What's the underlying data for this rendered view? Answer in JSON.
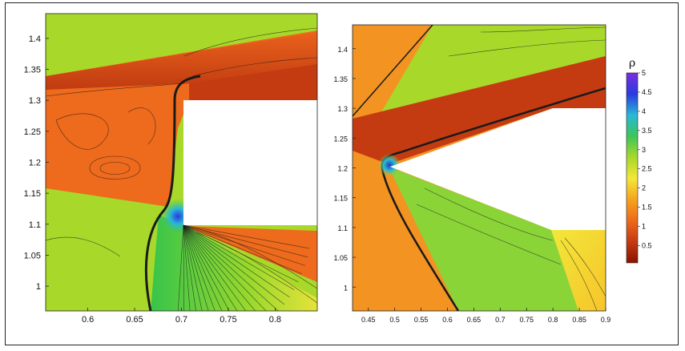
{
  "chart_data": [
    {
      "type": "heatmap",
      "panel": "left",
      "xlim": [
        0.555,
        0.845
      ],
      "ylim": [
        0.96,
        1.44
      ],
      "x_ticks": [
        "0.6",
        "0.65",
        "0.7",
        "0.75",
        "0.8"
      ],
      "y_ticks": [
        "1",
        "1.05",
        "1.1",
        "1.15",
        "1.2",
        "1.25",
        "1.3",
        "1.35",
        "1.4"
      ],
      "obstacle": {
        "x": [
          0.7,
          0.845
        ],
        "y": [
          1.1,
          1.3
        ]
      },
      "colors": {
        "freestream": "#a8d82a",
        "post_shock": "#ee6a1c",
        "dense_core": "#c43b12",
        "expansion_fan": "#38c44a",
        "stagnation": "#2a3be0"
      }
    },
    {
      "type": "heatmap",
      "panel": "right",
      "xlim": [
        0.42,
        0.9
      ],
      "ylim": [
        0.96,
        1.44
      ],
      "x_ticks": [
        "0.45",
        "0.5",
        "0.55",
        "0.6",
        "0.65",
        "0.7",
        "0.75",
        "0.8",
        "0.85",
        "0.9"
      ],
      "y_ticks": [
        "1",
        "1.05",
        "1.1",
        "1.15",
        "1.2",
        "1.25",
        "1.3",
        "1.35",
        "1.4"
      ],
      "obstacle": {
        "apex": [
          0.49,
          1.2
        ],
        "top_edge": [
          [
            0.69,
            1.3
          ],
          [
            0.9,
            1.3
          ]
        ],
        "bottom_edge": [
          [
            0.8,
            1.1
          ],
          [
            0.9,
            1.1
          ]
        ]
      },
      "colors": {
        "freestream": "#a8d82a",
        "post_shock": "#f29322",
        "dense_core": "#c43b12",
        "compressed_wedge": "#8bd438",
        "stagnation": "#1f3fb8"
      }
    },
    {
      "type": "colorbar",
      "title": "ρ",
      "range": [
        0.05,
        5
      ],
      "ticks": [
        "0.5",
        "1",
        "1.5",
        "2",
        "2.5",
        "3",
        "3.5",
        "4",
        "4.5",
        "5"
      ],
      "stops": [
        "#8a1200",
        "#c43b12",
        "#ee6a1c",
        "#f7a31c",
        "#f3e73a",
        "#a8d82a",
        "#3cc65a",
        "#28b8d8",
        "#2a3be0",
        "#7a2ee0"
      ]
    }
  ]
}
